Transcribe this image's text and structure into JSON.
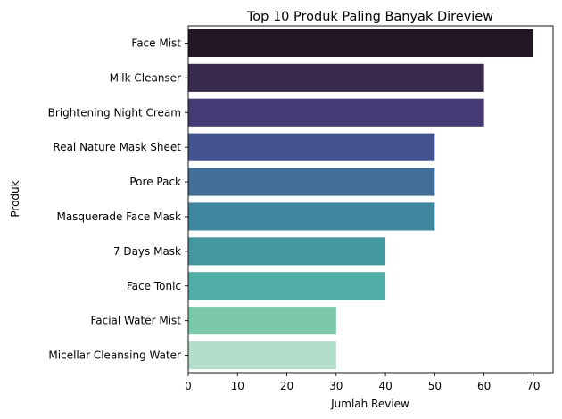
{
  "chart_data": {
    "type": "bar",
    "orientation": "horizontal",
    "title": "Top 10 Produk Paling Banyak Direview",
    "xlabel": "Jumlah Review",
    "ylabel": "Produk",
    "xlim": [
      0,
      74
    ],
    "x_ticks": [
      0,
      10,
      20,
      30,
      40,
      50,
      60,
      70
    ],
    "grid": false,
    "categories": [
      "Face Mist",
      "Milk Cleanser",
      "Brightening Night Cream",
      "Real Nature Mask Sheet",
      "Pore Pack",
      "Masquerade Face Mask",
      "7 Days Mask",
      "Face Tonic",
      "Facial Water Mist",
      "Micellar Cleansing Water"
    ],
    "values": [
      70,
      60,
      60,
      50,
      50,
      50,
      40,
      40,
      30,
      30
    ],
    "colors": [
      "#231726",
      "#372a4d",
      "#453a74",
      "#43538e",
      "#426f98",
      "#3f879f",
      "#42989c",
      "#50ada6",
      "#7bc9aa",
      "#b2decb"
    ]
  }
}
